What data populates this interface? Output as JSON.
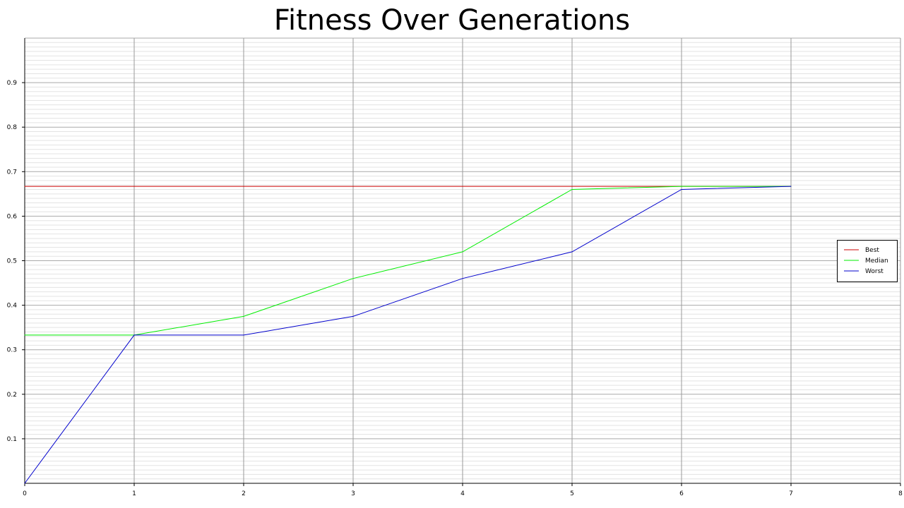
{
  "chart_data": {
    "type": "line",
    "title": "Fitness Over Generations",
    "xlabel": "",
    "ylabel": "",
    "xlim": [
      0,
      8
    ],
    "ylim": [
      0,
      1
    ],
    "x_ticks": [
      "0",
      "1",
      "2",
      "3",
      "4",
      "5",
      "6",
      "7",
      "8"
    ],
    "y_ticks": [
      "0.1",
      "0.2",
      "0.3",
      "0.4",
      "0.5",
      "0.6",
      "0.7",
      "0.8",
      "0.9"
    ],
    "grid": true,
    "legend_position": "right",
    "series": [
      {
        "name": "Best",
        "color": "#cc0000",
        "x": [
          0,
          1,
          2,
          3,
          4,
          5,
          6,
          7
        ],
        "y": [
          0.667,
          0.667,
          0.667,
          0.667,
          0.667,
          0.667,
          0.667,
          0.667
        ]
      },
      {
        "name": "Median",
        "color": "#00ee00",
        "x": [
          0,
          1,
          2,
          3,
          4,
          5,
          6,
          7
        ],
        "y": [
          0.333,
          0.333,
          0.375,
          0.46,
          0.52,
          0.66,
          0.667,
          0.667
        ]
      },
      {
        "name": "Worst",
        "color": "#0000cc",
        "x": [
          0,
          1,
          2,
          3,
          4,
          5,
          6,
          7
        ],
        "y": [
          0.0,
          0.333,
          0.333,
          0.375,
          0.46,
          0.52,
          0.66,
          0.667
        ]
      }
    ]
  }
}
